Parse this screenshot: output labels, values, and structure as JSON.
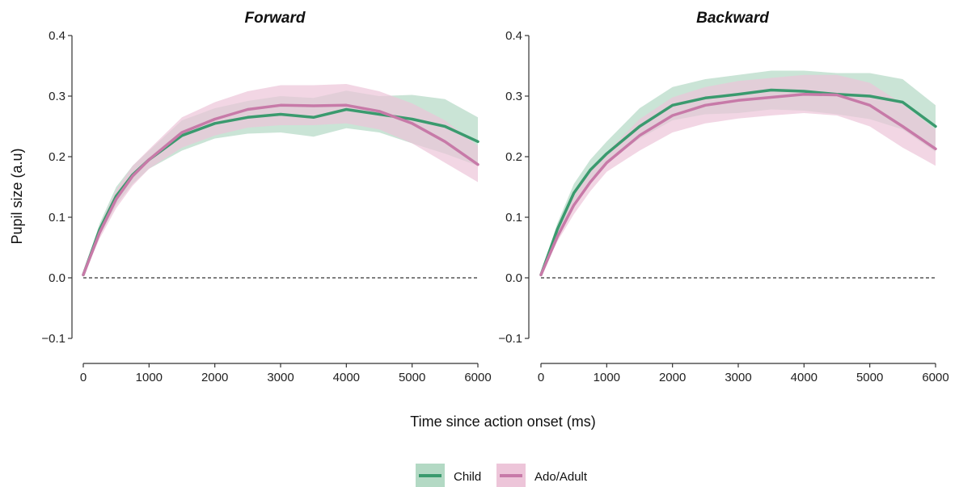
{
  "chart_data": {
    "type": "line",
    "xlabel": "Time since action onset (ms)",
    "ylabel": "Pupil size (a.u)",
    "xlim": [
      0,
      6000
    ],
    "ylim": [
      -0.1,
      0.4
    ],
    "x_ticks": [
      0,
      1000,
      2000,
      3000,
      4000,
      5000,
      6000
    ],
    "y_ticks": [
      -0.1,
      0.0,
      0.1,
      0.2,
      0.3,
      0.4
    ],
    "x_tick_labels": [
      "0",
      "1000",
      "2000",
      "3000",
      "4000",
      "5000",
      "6000"
    ],
    "y_tick_labels": [
      "−0.1",
      "0.0",
      "0.1",
      "0.2",
      "0.3",
      "0.4"
    ],
    "reference_line": {
      "y": 0,
      "style": "dashed"
    },
    "grid": false,
    "legend": {
      "position": "bottom",
      "entries": [
        {
          "label": "Child",
          "color": "#3a9a6e",
          "band_color": "#b3d9c4"
        },
        {
          "label": "Ado/Adult",
          "color": "#c77aa8",
          "band_color": "#edc5d9"
        }
      ]
    },
    "panels": [
      {
        "title": "Forward",
        "series": [
          {
            "name": "Child",
            "x": [
              0,
              250,
              500,
              750,
              1000,
              1500,
              2000,
              2500,
              3000,
              3500,
              4000,
              4500,
              5000,
              5500,
              6000
            ],
            "y": [
              0.005,
              0.08,
              0.135,
              0.17,
              0.195,
              0.235,
              0.255,
              0.265,
              0.27,
              0.265,
              0.278,
              0.27,
              0.262,
              0.25,
              0.225
            ],
            "lower": [
              0.003,
              0.07,
              0.12,
              0.155,
              0.18,
              0.21,
              0.23,
              0.238,
              0.24,
              0.233,
              0.247,
              0.24,
              0.222,
              0.205,
              0.185
            ],
            "upper": [
              0.007,
              0.09,
              0.15,
              0.185,
              0.21,
              0.26,
              0.28,
              0.292,
              0.3,
              0.297,
              0.309,
              0.3,
              0.302,
              0.295,
              0.265
            ]
          },
          {
            "name": "Ado/Adult",
            "x": [
              0,
              250,
              500,
              750,
              1000,
              1500,
              2000,
              2500,
              3000,
              3500,
              4000,
              4500,
              5000,
              5500,
              6000
            ],
            "y": [
              0.005,
              0.075,
              0.13,
              0.168,
              0.195,
              0.24,
              0.262,
              0.278,
              0.285,
              0.284,
              0.285,
              0.275,
              0.255,
              0.225,
              0.187
            ],
            "lower": [
              0.003,
              0.065,
              0.115,
              0.152,
              0.18,
              0.215,
              0.235,
              0.248,
              0.252,
              0.252,
              0.255,
              0.245,
              0.222,
              0.19,
              0.158
            ],
            "upper": [
              0.007,
              0.085,
              0.145,
              0.185,
              0.212,
              0.265,
              0.29,
              0.308,
              0.318,
              0.318,
              0.32,
              0.308,
              0.288,
              0.26,
              0.218
            ]
          }
        ]
      },
      {
        "title": "Backward",
        "series": [
          {
            "name": "Child",
            "x": [
              0,
              250,
              500,
              750,
              1000,
              1500,
              2000,
              2500,
              3000,
              3500,
              4000,
              4500,
              5000,
              5500,
              6000
            ],
            "y": [
              0.005,
              0.08,
              0.14,
              0.178,
              0.205,
              0.25,
              0.285,
              0.297,
              0.303,
              0.31,
              0.308,
              0.303,
              0.3,
              0.29,
              0.25
            ],
            "lower": [
              0.003,
              0.07,
              0.125,
              0.163,
              0.19,
              0.23,
              0.26,
              0.27,
              0.272,
              0.278,
              0.276,
              0.27,
              0.262,
              0.245,
              0.208
            ],
            "upper": [
              0.007,
              0.09,
              0.155,
              0.195,
              0.225,
              0.28,
              0.315,
              0.328,
              0.335,
              0.342,
              0.342,
              0.338,
              0.338,
              0.328,
              0.285
            ]
          },
          {
            "name": "Ado/Adult",
            "x": [
              0,
              250,
              500,
              750,
              1000,
              1500,
              2000,
              2500,
              3000,
              3500,
              4000,
              4500,
              5000,
              5500,
              6000
            ],
            "y": [
              0.005,
              0.068,
              0.12,
              0.158,
              0.19,
              0.235,
              0.268,
              0.285,
              0.293,
              0.298,
              0.303,
              0.302,
              0.285,
              0.25,
              0.213
            ],
            "lower": [
              0.003,
              0.06,
              0.105,
              0.143,
              0.175,
              0.21,
              0.24,
              0.255,
              0.263,
              0.268,
              0.272,
              0.268,
              0.25,
              0.215,
              0.185
            ],
            "upper": [
              0.007,
              0.078,
              0.135,
              0.175,
              0.207,
              0.262,
              0.298,
              0.315,
              0.325,
              0.33,
              0.335,
              0.335,
              0.322,
              0.287,
              0.245
            ]
          }
        ]
      }
    ]
  }
}
